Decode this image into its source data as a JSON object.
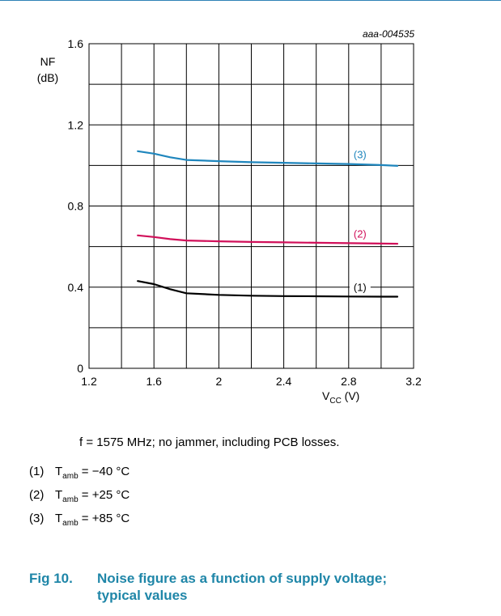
{
  "chart_data": {
    "type": "line",
    "code": "aaa-004535",
    "ylabel_top": "NF",
    "ylabel_unit": "(dB)",
    "xlabel_main": "V",
    "xlabel_sub": "CC",
    "xlabel_unit": " (V)",
    "xlim": [
      1.2,
      3.2
    ],
    "ylim": [
      0,
      1.6
    ],
    "x_ticks": [
      "1.2",
      "1.6",
      "2",
      "2.4",
      "2.8",
      "3.2"
    ],
    "y_ticks": [
      "0",
      "0.4",
      "0.8",
      "1.2",
      "1.6"
    ],
    "grid": true,
    "series": [
      {
        "name": "(1)",
        "color": "#000000",
        "x": [
          1.5,
          1.6,
          1.7,
          1.8,
          2.0,
          2.2,
          2.4,
          2.6,
          2.8,
          3.0,
          3.1
        ],
        "y": [
          0.43,
          0.415,
          0.39,
          0.37,
          0.362,
          0.358,
          0.356,
          0.355,
          0.354,
          0.353,
          0.353
        ]
      },
      {
        "name": "(2)",
        "color": "#d1105a",
        "x": [
          1.5,
          1.6,
          1.7,
          1.8,
          2.0,
          2.2,
          2.4,
          2.6,
          2.8,
          3.0,
          3.1
        ],
        "y": [
          0.655,
          0.647,
          0.637,
          0.63,
          0.626,
          0.623,
          0.621,
          0.619,
          0.617,
          0.615,
          0.614
        ]
      },
      {
        "name": "(3)",
        "color": "#1f86bd",
        "x": [
          1.5,
          1.6,
          1.7,
          1.8,
          2.0,
          2.2,
          2.4,
          2.6,
          2.8,
          3.0,
          3.1
        ],
        "y": [
          1.07,
          1.058,
          1.04,
          1.027,
          1.021,
          1.016,
          1.013,
          1.01,
          1.007,
          1.002,
          0.998
        ]
      }
    ]
  },
  "condition": "f = 1575 MHz; no jammer, including PCB losses.",
  "legend": [
    {
      "num": "(1)",
      "T": "T",
      "sub": "amb",
      "value": " = −40 °C"
    },
    {
      "num": "(2)",
      "T": "T",
      "sub": "amb",
      "value": " = +25 °C"
    },
    {
      "num": "(3)",
      "T": "T",
      "sub": "amb",
      "value": " = +85 °C"
    }
  ],
  "caption": {
    "fig_no": "Fig 10.",
    "line1": "Noise figure as a function of supply voltage;",
    "line2": "typical values"
  }
}
